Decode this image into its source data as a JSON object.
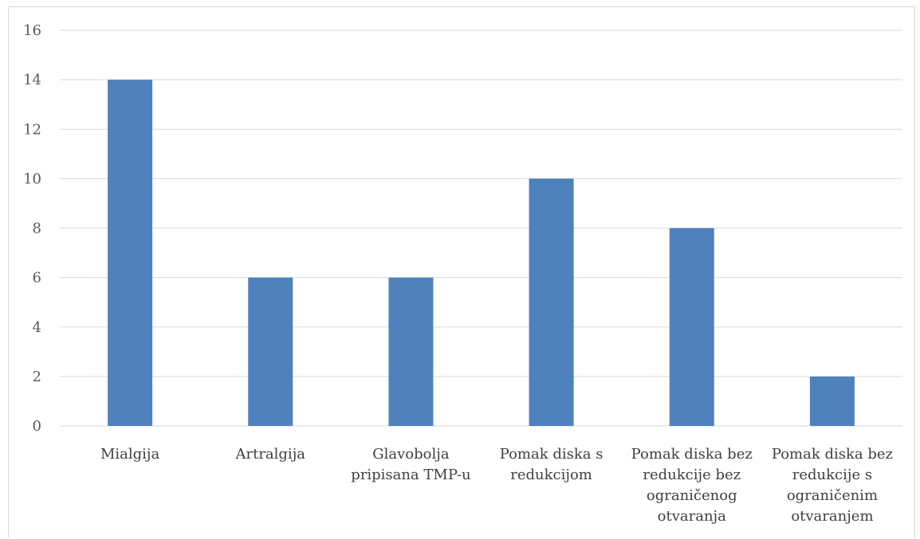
{
  "chart_data": {
    "type": "bar",
    "categories": [
      [
        "Mialgija"
      ],
      [
        "Artralgija"
      ],
      [
        "Glavobolja",
        "pripisana TMP-u"
      ],
      [
        "Pomak diska s",
        "redukcijom"
      ],
      [
        "Pomak diska bez",
        "redukcije bez",
        "ograničenog",
        "otvaranja"
      ],
      [
        "Pomak diska bez",
        "redukcije s",
        "ograničenim",
        "otvaranjem"
      ]
    ],
    "values": [
      14,
      6,
      6,
      10,
      8,
      2
    ],
    "ylim": [
      0,
      16
    ],
    "yticks": [
      0,
      2,
      4,
      6,
      8,
      10,
      12,
      14,
      16
    ],
    "grid": true,
    "bar_color": "#4f81bd",
    "grid_color": "#d9d9d9",
    "title": "",
    "xlabel": "",
    "ylabel": ""
  }
}
